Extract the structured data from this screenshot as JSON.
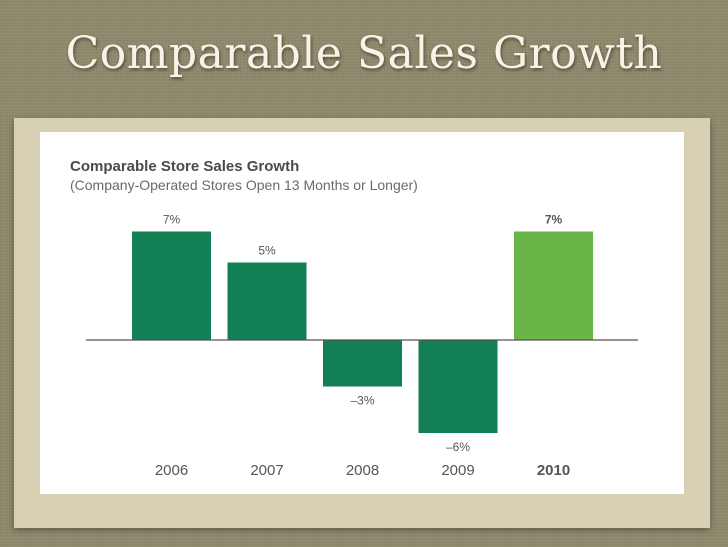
{
  "slide": {
    "title": "Comparable Sales Growth"
  },
  "chart_data": {
    "type": "bar",
    "title": "Comparable Store Sales Growth",
    "subtitle": "(Company-Operated Stores Open 13 Months or Longer)",
    "categories": [
      "2006",
      "2007",
      "2008",
      "2009",
      "2010"
    ],
    "values": [
      7,
      5,
      -3,
      -6,
      7
    ],
    "labels": [
      "7%",
      "5%",
      "–3%",
      "–6%",
      "7%"
    ],
    "highlight_index": 4,
    "ylim": [
      -6,
      7
    ],
    "unit": "%",
    "colors": {
      "default": "#137f54",
      "highlight": "#6ab547",
      "axis": "#555555"
    }
  }
}
